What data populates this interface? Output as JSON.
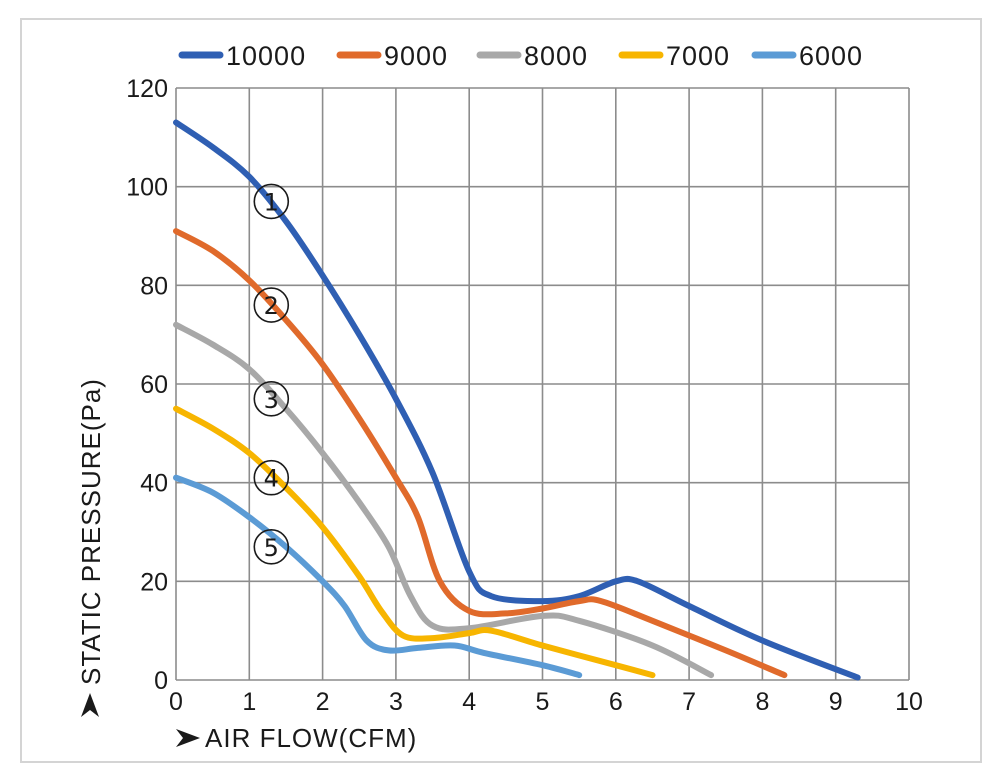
{
  "chart_data": {
    "type": "line",
    "xlabel": "AIR FLOW(CFM)",
    "ylabel": "STATIC PRESSURE(Pa)",
    "xlim": [
      0,
      10
    ],
    "ylim": [
      0,
      120
    ],
    "xticks": [
      "0",
      "1",
      "2",
      "3",
      "4",
      "5",
      "6",
      "7",
      "8",
      "9",
      "10"
    ],
    "yticks": [
      "0",
      "20",
      "40",
      "60",
      "80",
      "100",
      "120"
    ],
    "grid": true,
    "legend_position": "top",
    "series": [
      {
        "name": "10000",
        "color": "#2f5fb3",
        "marker_label": "①",
        "marker_at": [
          1.3,
          97
        ],
        "points": [
          [
            0,
            113
          ],
          [
            0.5,
            108
          ],
          [
            1,
            102
          ],
          [
            1.5,
            93
          ],
          [
            2,
            82
          ],
          [
            2.5,
            70
          ],
          [
            3,
            57
          ],
          [
            3.5,
            42
          ],
          [
            4,
            22
          ],
          [
            4.3,
            17
          ],
          [
            5,
            16
          ],
          [
            5.5,
            17
          ],
          [
            6,
            20
          ],
          [
            6.3,
            20
          ],
          [
            7,
            15
          ],
          [
            8,
            8
          ],
          [
            9.3,
            0.5
          ]
        ]
      },
      {
        "name": "9000",
        "color": "#e06a2b",
        "marker_label": "②",
        "marker_at": [
          1.3,
          76
        ],
        "points": [
          [
            0,
            91
          ],
          [
            0.5,
            87
          ],
          [
            1,
            81
          ],
          [
            1.5,
            73
          ],
          [
            2,
            64
          ],
          [
            2.5,
            53
          ],
          [
            3,
            41
          ],
          [
            3.3,
            33
          ],
          [
            3.6,
            20
          ],
          [
            4,
            14
          ],
          [
            4.5,
            13.5
          ],
          [
            5,
            14.5
          ],
          [
            5.5,
            16
          ],
          [
            5.8,
            16
          ],
          [
            6.5,
            12
          ],
          [
            7.5,
            6
          ],
          [
            8.3,
            1
          ]
        ]
      },
      {
        "name": "8000",
        "color": "#a8a8a8",
        "marker_label": "③",
        "marker_at": [
          1.3,
          57
        ],
        "points": [
          [
            0,
            72
          ],
          [
            0.5,
            68
          ],
          [
            1,
            63
          ],
          [
            1.5,
            55
          ],
          [
            2,
            46
          ],
          [
            2.5,
            36
          ],
          [
            2.9,
            27
          ],
          [
            3.2,
            17
          ],
          [
            3.5,
            11
          ],
          [
            4,
            10.5
          ],
          [
            5,
            13
          ],
          [
            5.5,
            12
          ],
          [
            6.5,
            7
          ],
          [
            7.3,
            1
          ]
        ]
      },
      {
        "name": "7000",
        "color": "#f7b500",
        "marker_label": "④",
        "marker_at": [
          1.3,
          41
        ],
        "points": [
          [
            0,
            55
          ],
          [
            0.5,
            51
          ],
          [
            1,
            46
          ],
          [
            1.5,
            39
          ],
          [
            2,
            31
          ],
          [
            2.5,
            21
          ],
          [
            2.8,
            14
          ],
          [
            3.1,
            9
          ],
          [
            3.5,
            8.5
          ],
          [
            4,
            9.5
          ],
          [
            4.3,
            10
          ],
          [
            5,
            7
          ],
          [
            6,
            3
          ],
          [
            6.5,
            1
          ]
        ]
      },
      {
        "name": "6000",
        "color": "#5b9bd5",
        "marker_label": "⑤",
        "marker_at": [
          1.3,
          27
        ],
        "points": [
          [
            0,
            41
          ],
          [
            0.5,
            38
          ],
          [
            1,
            33
          ],
          [
            1.5,
            27
          ],
          [
            2,
            20
          ],
          [
            2.3,
            15
          ],
          [
            2.6,
            8
          ],
          [
            2.9,
            6
          ],
          [
            3.3,
            6.5
          ],
          [
            3.8,
            7
          ],
          [
            4.2,
            5.5
          ],
          [
            5,
            3
          ],
          [
            5.5,
            1
          ]
        ]
      }
    ]
  }
}
